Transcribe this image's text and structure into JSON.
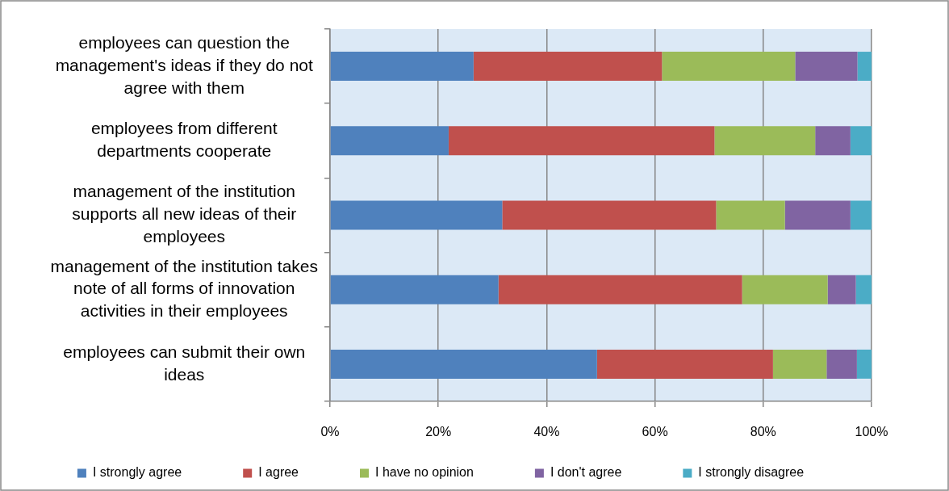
{
  "chart_data": {
    "type": "bar",
    "orientation": "horizontal",
    "stacked": true,
    "categories": [
      "employees can question the management's ideas if they do not agree with them",
      "employees from different departments cooperate",
      "management of the institution supports all new ideas of their employees",
      "management of the institution takes note of all forms of innovation activities in their employees",
      "employees can submit their own ideas"
    ],
    "series": [
      {
        "name": "I strongly agree",
        "color": "#4f81bd",
        "values": [
          26.5,
          21.9,
          31.8,
          31.1,
          49.3
        ]
      },
      {
        "name": "I agree",
        "color": "#c0504d",
        "values": [
          34.8,
          49.1,
          39.5,
          45.0,
          32.5
        ]
      },
      {
        "name": "I have no opinion",
        "color": "#9bbb59",
        "values": [
          24.6,
          18.6,
          12.7,
          15.8,
          9.9
        ]
      },
      {
        "name": "I don't agree",
        "color": "#8064a2",
        "values": [
          11.5,
          6.5,
          12.1,
          5.2,
          5.6
        ]
      },
      {
        "name": "I strongly disagree",
        "color": "#4bacc6",
        "values": [
          2.6,
          3.9,
          3.9,
          2.9,
          2.7
        ]
      }
    ],
    "xlim": [
      0,
      100
    ],
    "xticks": [
      {
        "value": 0,
        "label": "0%"
      },
      {
        "value": 20,
        "label": "20%"
      },
      {
        "value": 40,
        "label": "40%"
      },
      {
        "value": 60,
        "label": "60%"
      },
      {
        "value": 80,
        "label": "80%"
      },
      {
        "value": 100,
        "label": "100%"
      }
    ],
    "grid": "x",
    "legend": "bottom"
  }
}
